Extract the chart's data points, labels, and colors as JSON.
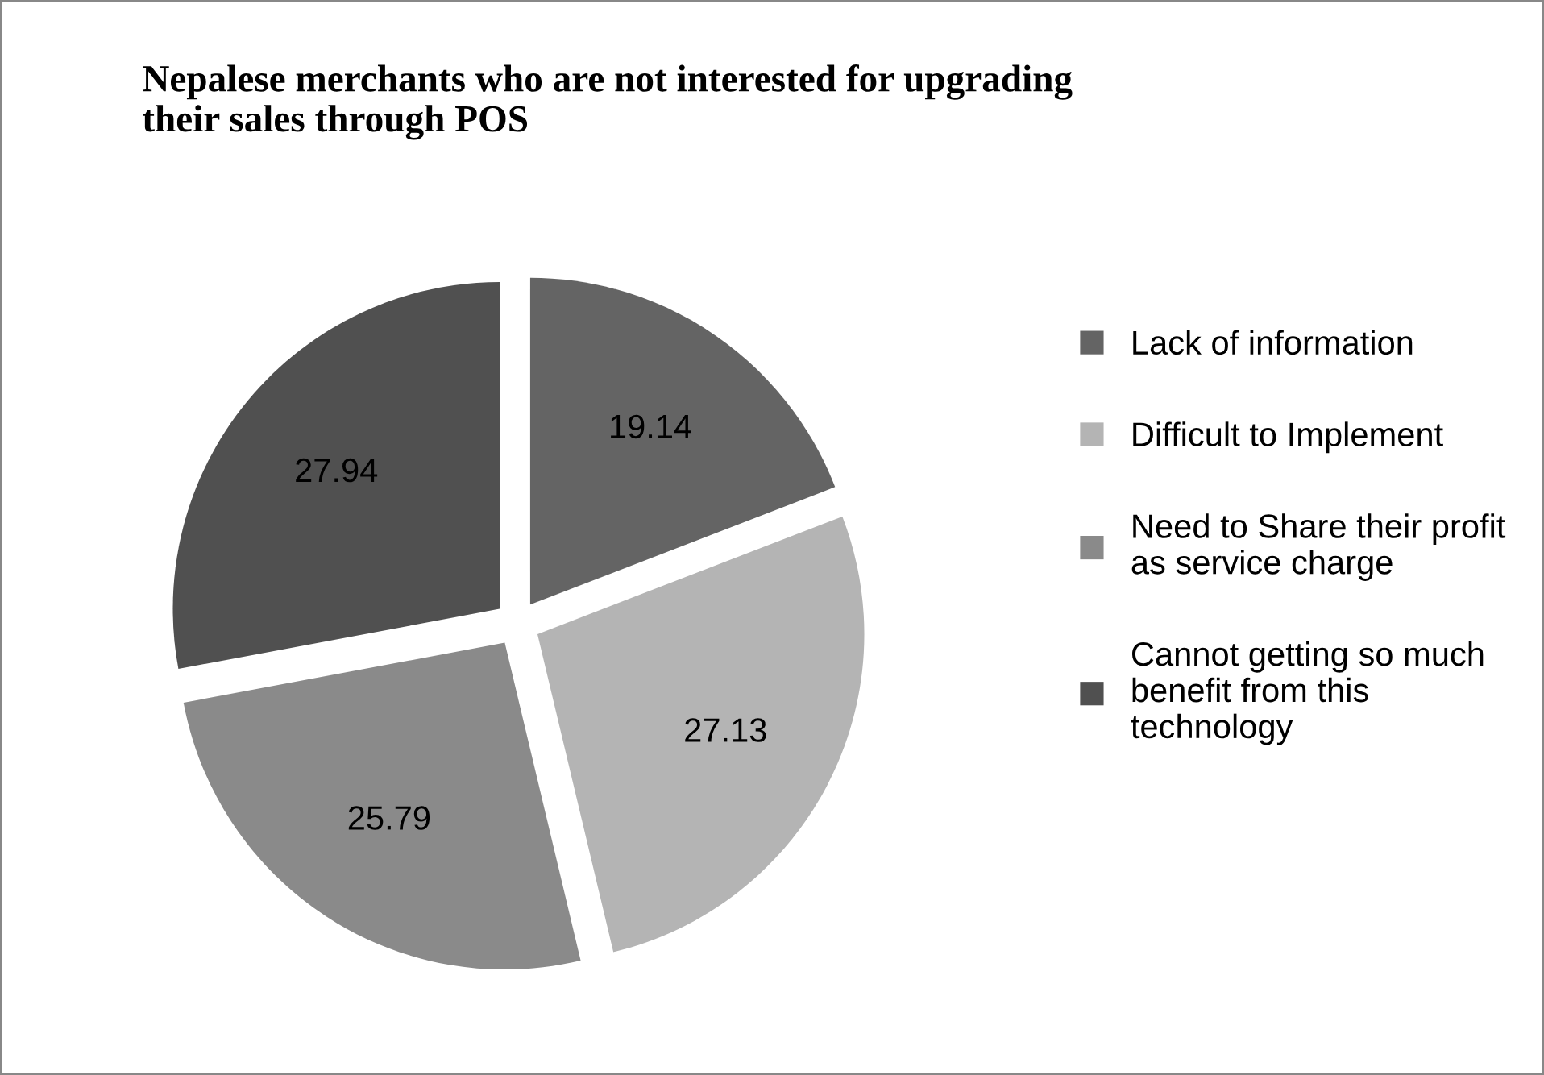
{
  "chart_data": {
    "type": "pie",
    "title": "Nepalese merchants who are not interested for upgrading\ntheir sales through POS",
    "categories": [
      "Lack of information",
      "Difficult to Implement",
      "Need to Share their profit\nas service charge",
      "Cannot getting so much\nbenefit from this\ntechnology"
    ],
    "values": [
      19.14,
      27.13,
      25.79,
      27.94
    ],
    "colors": [
      "#646464",
      "#b4b4b4",
      "#8a8a8a",
      "#505050"
    ],
    "data_labels": true,
    "legend": "right"
  }
}
